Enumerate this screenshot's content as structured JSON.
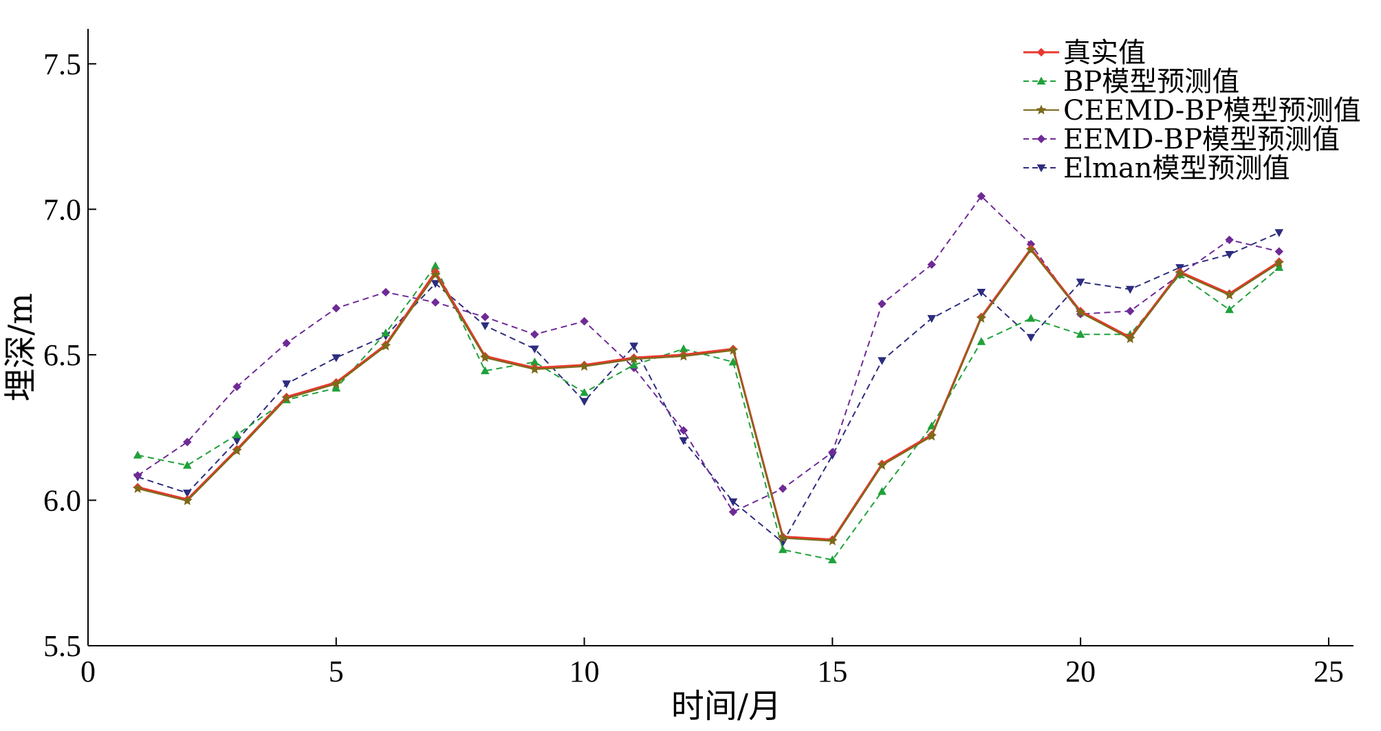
{
  "chart_data": {
    "type": "line",
    "xlabel": "时间/月",
    "ylabel": "埋深/m",
    "xlim": [
      0,
      25.5
    ],
    "ylim": [
      5.5,
      7.62
    ],
    "xticks": [
      0,
      5,
      10,
      15,
      20,
      25
    ],
    "yticks": [
      5.5,
      6.0,
      6.5,
      7.0,
      7.5
    ],
    "ytick_labels": [
      "5.5",
      "6.0",
      "6.5",
      "7.0",
      "7.5"
    ],
    "grid": false,
    "legend_position": "top-right",
    "x": [
      1,
      2,
      3,
      4,
      5,
      6,
      7,
      8,
      9,
      10,
      11,
      12,
      13,
      14,
      15,
      16,
      17,
      18,
      19,
      20,
      21,
      22,
      23,
      24
    ],
    "series": [
      {
        "name": "真实值",
        "color": "#e8382e",
        "dash": "solid",
        "marker": "diamond",
        "values": [
          6.045,
          6.003,
          6.175,
          6.355,
          6.405,
          6.535,
          6.785,
          6.495,
          6.455,
          6.465,
          6.49,
          6.5,
          6.52,
          5.875,
          5.865,
          6.125,
          6.225,
          6.63,
          6.865,
          6.65,
          6.56,
          6.785,
          6.71,
          6.82
        ]
      },
      {
        "name": "BP模型预测值",
        "color": "#1fa13a",
        "dash": "dashed",
        "marker": "triangle-up",
        "values": [
          6.155,
          6.12,
          6.225,
          6.345,
          6.385,
          6.575,
          6.805,
          6.445,
          6.475,
          6.37,
          6.465,
          6.52,
          6.475,
          5.83,
          5.795,
          6.03,
          6.255,
          6.545,
          6.625,
          6.57,
          6.57,
          6.775,
          6.655,
          6.8
        ]
      },
      {
        "name": "CEEMD-BP模型预测值",
        "color": "#7c6a1a",
        "dash": "solid",
        "marker": "star",
        "values": [
          6.04,
          5.998,
          6.17,
          6.35,
          6.4,
          6.53,
          6.775,
          6.49,
          6.45,
          6.46,
          6.485,
          6.495,
          6.515,
          5.87,
          5.86,
          6.12,
          6.22,
          6.625,
          6.86,
          6.645,
          6.555,
          6.78,
          6.705,
          6.815
        ]
      },
      {
        "name": "EEMD-BP模型预测值",
        "color": "#6f2a96",
        "dash": "dashed",
        "marker": "diamond",
        "values": [
          6.085,
          6.2,
          6.39,
          6.54,
          6.66,
          6.715,
          6.68,
          6.63,
          6.57,
          6.615,
          6.455,
          6.24,
          5.96,
          6.04,
          6.165,
          6.675,
          6.81,
          7.045,
          6.88,
          6.64,
          6.65,
          6.775,
          6.895,
          6.855
        ]
      },
      {
        "name": "Elman模型预测值",
        "color": "#2c2d7e",
        "dash": "dashed",
        "marker": "triangle-down",
        "values": [
          6.08,
          6.025,
          6.205,
          6.4,
          6.49,
          6.565,
          6.745,
          6.6,
          6.52,
          6.34,
          6.53,
          6.205,
          5.995,
          5.855,
          6.155,
          6.48,
          6.625,
          6.715,
          6.56,
          6.75,
          6.725,
          6.8,
          6.845,
          6.92
        ]
      }
    ]
  }
}
